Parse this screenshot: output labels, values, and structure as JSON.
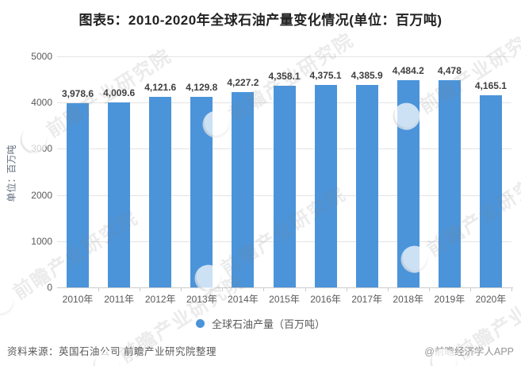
{
  "title": "图表5：2010-2020年全球石油产量变化情况(单位：百万吨)",
  "chart_data": {
    "type": "bar",
    "categories": [
      "2010年",
      "2011年",
      "2012年",
      "2013年",
      "2014年",
      "2015年",
      "2016年",
      "2017年",
      "2018年",
      "2019年",
      "2020年"
    ],
    "values": [
      3978.6,
      4009.6,
      4121.6,
      4129.8,
      4227.2,
      4358.1,
      4375.1,
      4385.9,
      4484.2,
      4478,
      4165.1
    ],
    "value_labels": [
      "3,978.6",
      "4,009.6",
      "4,121.6",
      "4,129.8",
      "4,227.2",
      "4,358.1",
      "4,375.1",
      "4,385.9",
      "4,484.2",
      "4,478",
      "4,165.1"
    ],
    "title": "图表5：2010-2020年全球石油产量变化情况(单位：百万吨)",
    "xlabel": "",
    "ylabel": "单位：百万吨",
    "yticks": [
      0,
      1000,
      2000,
      3000,
      4000,
      5000
    ],
    "ylim": [
      0,
      5000
    ],
    "grid": true,
    "bar_color": "#4b94da",
    "legend": {
      "label": "全球石油产量（百万吨）",
      "marker_color": "#4b94da",
      "position": "bottom"
    }
  },
  "watermark": {
    "text": "前瞻产业研究院"
  },
  "footer": {
    "source": "资料来源：英国石油公司 前瞻产业研究院整理",
    "credit": "@前瞻经济学人APP"
  }
}
